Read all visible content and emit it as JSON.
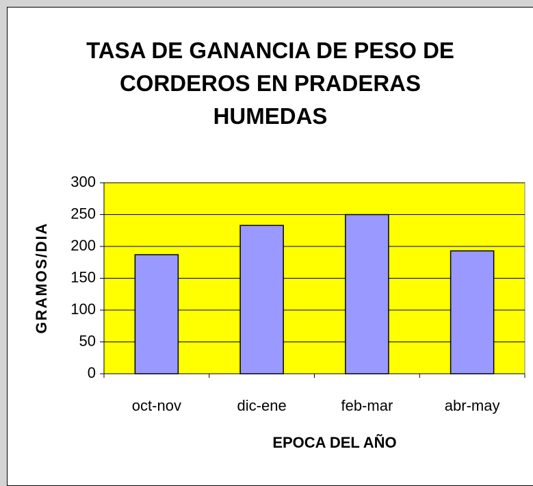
{
  "chart_data": {
    "type": "bar",
    "title": "TASA DE GANANCIA DE PESO DE CORDEROS EN PRADERAS HUMEDAS",
    "x_label": "EPOCA DEL AÑO",
    "y_label": "GRAMOS/DIA",
    "categories": [
      "oct-nov",
      "dic-ene",
      "feb-mar",
      "abr-may"
    ],
    "values": [
      187,
      233,
      250,
      193
    ],
    "color": "#9999ff",
    "plot_background": "#ffff00",
    "ylim": [
      0,
      300
    ],
    "yticks": [
      0,
      50,
      100,
      150,
      200,
      250,
      300
    ],
    "grid": true
  }
}
